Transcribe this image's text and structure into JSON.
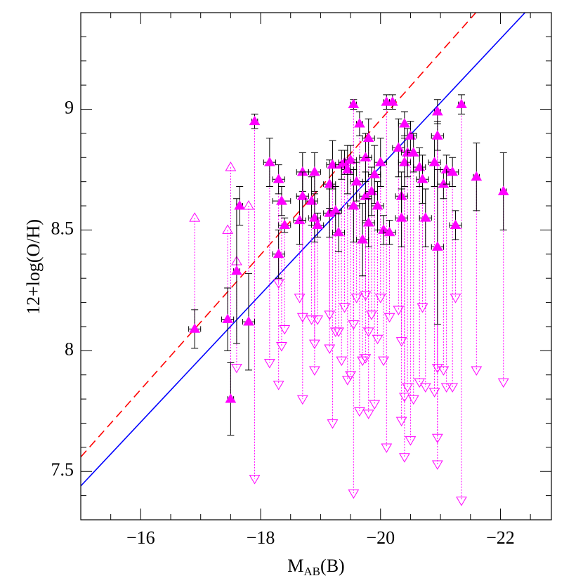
{
  "chart_data": {
    "type": "scatter",
    "xlabel": {
      "main": "M",
      "sub": "AB",
      "tail": "(B)"
    },
    "ylabel": "12+log(O/H)",
    "xlim": [
      -15,
      -22.85
    ],
    "ylim": [
      7.3,
      9.4
    ],
    "xticks": [
      {
        "value": -16,
        "label": "−16"
      },
      {
        "value": -18,
        "label": "−18"
      },
      {
        "value": -20,
        "label": "−20"
      },
      {
        "value": -22,
        "label": "−22"
      }
    ],
    "yticks": [
      7.5,
      8,
      8.5,
      9
    ],
    "xminorticks": [
      -15.5,
      -16.5,
      -17,
      -17.5,
      -18.5,
      -19,
      -19.5,
      -20.5,
      -21,
      -21.5,
      -22.5
    ],
    "yminorticks": [
      7.4,
      7.6,
      7.7,
      7.8,
      7.9,
      8.1,
      8.2,
      8.3,
      8.4,
      8.6,
      8.7,
      8.8,
      8.9,
      9.1,
      9.2,
      9.3
    ],
    "lines": [
      {
        "color": "#0000ff",
        "dash": false,
        "x": [
          -15,
          -22.41
        ],
        "y": [
          7.44,
          9.4
        ]
      },
      {
        "color": "#ff0000",
        "dash": true,
        "x": [
          -15,
          -21.59
        ],
        "y": [
          7.56,
          9.4
        ]
      }
    ],
    "point_color": "#ff00ff",
    "error_color": "#000000",
    "x": [
      -16.9,
      -17.45,
      -17.5,
      -17.6,
      -17.65,
      -17.8,
      -17.9,
      -18.15,
      -18.3,
      -18.3,
      -18.35,
      -18.4,
      -18.65,
      -18.7,
      -18.7,
      -18.85,
      -18.9,
      -18.9,
      -18.95,
      -19.15,
      -19.15,
      -19.2,
      -19.25,
      -19.3,
      -19.35,
      -19.4,
      -19.45,
      -19.5,
      -19.55,
      -19.55,
      -19.6,
      -19.65,
      -19.7,
      -19.75,
      -19.75,
      -19.8,
      -19.8,
      -19.85,
      -19.9,
      -19.95,
      -20.0,
      -20.05,
      -20.1,
      -20.15,
      -20.2,
      -20.3,
      -20.35,
      -20.35,
      -20.4,
      -20.4,
      -20.45,
      -20.5,
      -20.55,
      -20.65,
      -20.7,
      -20.75,
      -20.9,
      -20.95,
      -20.95,
      -20.95,
      -21.05,
      -21.1,
      -21.2,
      -21.25,
      -21.35,
      -21.6,
      -22.05
    ],
    "y": [
      8.09,
      8.13,
      7.8,
      8.33,
      8.6,
      8.12,
      8.95,
      8.78,
      8.4,
      8.71,
      8.62,
      8.52,
      8.54,
      8.74,
      8.64,
      8.62,
      8.74,
      8.55,
      8.52,
      8.69,
      8.57,
      8.77,
      8.58,
      8.49,
      8.77,
      8.78,
      8.75,
      8.79,
      9.02,
      8.6,
      8.7,
      8.94,
      8.46,
      8.8,
      8.64,
      8.88,
      8.53,
      8.66,
      8.73,
      8.6,
      8.78,
      8.5,
      9.03,
      8.49,
      9.03,
      8.84,
      8.64,
      8.55,
      8.78,
      8.94,
      8.82,
      8.89,
      8.82,
      8.76,
      8.71,
      8.55,
      8.78,
      8.43,
      8.99,
      8.89,
      8.69,
      8.75,
      8.74,
      8.52,
      9.02,
      8.72,
      8.66
    ],
    "yerr": [
      0.08,
      0.13,
      0.15,
      0.3,
      0.08,
      0.2,
      0.03,
      0.1,
      0.1,
      0.06,
      0.06,
      0.03,
      0.1,
      0.08,
      0.1,
      0.1,
      0.08,
      0.1,
      0.05,
      0.1,
      0.1,
      0.1,
      0.1,
      0.08,
      0.06,
      0.05,
      0.1,
      0.06,
      0.02,
      0.15,
      0.08,
      0.05,
      0.15,
      0.1,
      0.1,
      0.08,
      0.1,
      0.1,
      0.12,
      0.1,
      0.1,
      0.06,
      0.03,
      0.05,
      0.03,
      0.12,
      0.1,
      0.12,
      0.1,
      0.05,
      0.1,
      0.06,
      0.08,
      0.08,
      0.1,
      0.12,
      0.1,
      0.32,
      0.05,
      0.06,
      0.06,
      0.06,
      0.06,
      0.06,
      0.04,
      0.14,
      0.16
    ],
    "xerr": [
      0.1,
      0.1,
      0.05,
      0.05,
      0.05,
      0.1,
      0.05,
      0.1,
      0.1,
      0.1,
      0.15,
      0.1,
      0.1,
      0.1,
      0.1,
      0.1,
      0.1,
      0.1,
      0.1,
      0.1,
      0.1,
      0.1,
      0.1,
      0.1,
      0.1,
      0.1,
      0.1,
      0.1,
      0.05,
      0.1,
      0.1,
      0.05,
      0.1,
      0.1,
      0.1,
      0.1,
      0.1,
      0.1,
      0.1,
      0.1,
      0.1,
      0.1,
      0.05,
      0.1,
      0.05,
      0.1,
      0.1,
      0.1,
      0.1,
      0.1,
      0.1,
      0.1,
      0.1,
      0.1,
      0.1,
      0.1,
      0.1,
      0.1,
      0.05,
      0.1,
      0.1,
      0.1,
      0.1,
      0.1,
      0.05,
      0.05,
      0.05
    ],
    "upper": [
      8.55,
      8.5,
      8.76,
      8.37,
      null,
      8.6,
      null,
      null,
      null,
      null,
      null,
      null,
      null,
      null,
      null,
      null,
      null,
      null,
      null,
      null,
      null,
      null,
      null,
      null,
      null,
      null,
      null,
      null,
      null,
      null,
      null,
      null,
      null,
      null,
      null,
      null,
      null,
      null,
      null,
      null,
      null,
      null,
      null,
      null,
      null,
      null,
      null,
      null,
      null,
      null,
      null,
      null,
      null,
      null,
      null,
      null,
      null,
      null,
      null,
      null,
      null,
      null,
      null,
      null,
      null,
      null,
      null
    ],
    "lower": [
      null,
      null,
      null,
      7.93,
      null,
      null,
      7.47,
      7.95,
      8.28,
      7.86,
      8.02,
      8.09,
      8.22,
      8.14,
      7.8,
      8.13,
      8.03,
      7.92,
      8.13,
      8.15,
      8.01,
      7.7,
      8.08,
      8.08,
      7.96,
      8.18,
      7.88,
      7.9,
      7.41,
      8.11,
      8.22,
      7.75,
      7.96,
      8.23,
      7.97,
      7.74,
      8.08,
      8.15,
      7.78,
      8.05,
      8.22,
      7.96,
      7.6,
      8.14,
      null,
      8.17,
      7.71,
      8.04,
      7.81,
      7.56,
      7.85,
      7.63,
      7.8,
      7.87,
      8.18,
      7.85,
      7.83,
      7.64,
      7.53,
      7.93,
      7.92,
      7.85,
      7.85,
      8.22,
      7.38,
      7.92,
      7.87
    ]
  }
}
